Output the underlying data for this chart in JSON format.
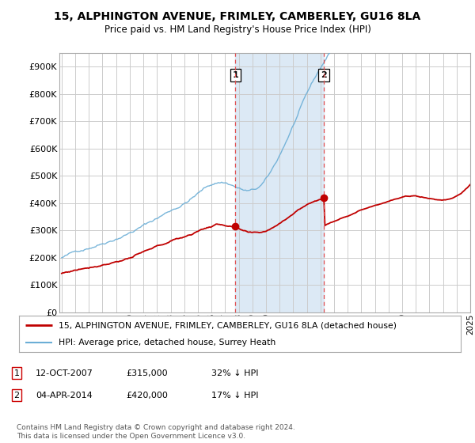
{
  "title": "15, ALPHINGTON AVENUE, FRIMLEY, CAMBERLEY, GU16 8LA",
  "subtitle": "Price paid vs. HM Land Registry's House Price Index (HPI)",
  "ylim": [
    0,
    950000
  ],
  "yticks": [
    0,
    100000,
    200000,
    300000,
    400000,
    500000,
    600000,
    700000,
    800000,
    900000
  ],
  "ytick_labels": [
    "£0",
    "£100K",
    "£200K",
    "£300K",
    "£400K",
    "£500K",
    "£600K",
    "£700K",
    "£800K",
    "£900K"
  ],
  "sale1_idx": 153,
  "sale1_price": 315000,
  "sale2_idx": 231,
  "sale2_price": 420000,
  "legend_line1": "15, ALPHINGTON AVENUE, FRIMLEY, CAMBERLEY, GU16 8LA (detached house)",
  "legend_line2": "HPI: Average price, detached house, Surrey Heath",
  "footer": "Contains HM Land Registry data © Crown copyright and database right 2024.\nThis data is licensed under the Open Government Licence v3.0.",
  "hpi_color": "#6baed6",
  "price_color": "#c00000",
  "shading_color": "#dce9f5",
  "background_color": "#ffffff",
  "n_months": 361
}
